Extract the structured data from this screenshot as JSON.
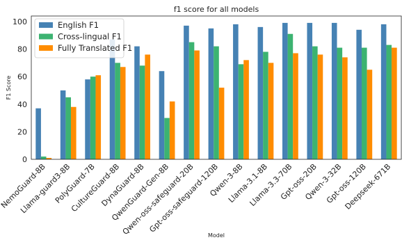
{
  "chart_data": {
    "type": "bar",
    "title": "f1 score for all models",
    "xlabel": "Model",
    "ylabel": "F1 Score",
    "ylim": [
      0,
      104
    ],
    "yticks": [
      0,
      20,
      40,
      60,
      80,
      100
    ],
    "grid": false,
    "legend_position": "top-left",
    "categories": [
      "NemoGuard-8B",
      "Llama-guard3-8B",
      "PolyGuard-7B",
      "CultureGuard-8B",
      "DynaGuard-8B",
      "QwenGuard-Gen-8B",
      "Qwen-oss-safeguard-20B",
      "Gpt-oss-safeguard-120B",
      "Qwen-3-8B",
      "Llama-3.1-8B",
      "Llama-3.3-70B",
      "Gpt-oss-20B",
      "Qwen-3-32B",
      "Gpt-oss-120B",
      "Deepseek-671B"
    ],
    "series": [
      {
        "name": "English F1",
        "color": "#4682b4",
        "values": [
          37,
          50,
          58,
          87,
          82,
          64,
          97,
          95,
          98,
          96,
          99,
          99,
          99,
          94,
          98
        ]
      },
      {
        "name": "Cross-lingual F1",
        "color": "#3cb371",
        "values": [
          2,
          45,
          60,
          70,
          68,
          30,
          85,
          82,
          69,
          78,
          91,
          82,
          81,
          81,
          83
        ]
      },
      {
        "name": "Fully Translated F1",
        "color": "#ff8c00",
        "values": [
          1,
          38,
          61,
          67,
          76,
          42,
          79,
          52,
          72,
          70,
          77,
          76,
          74,
          65,
          81
        ]
      }
    ]
  }
}
